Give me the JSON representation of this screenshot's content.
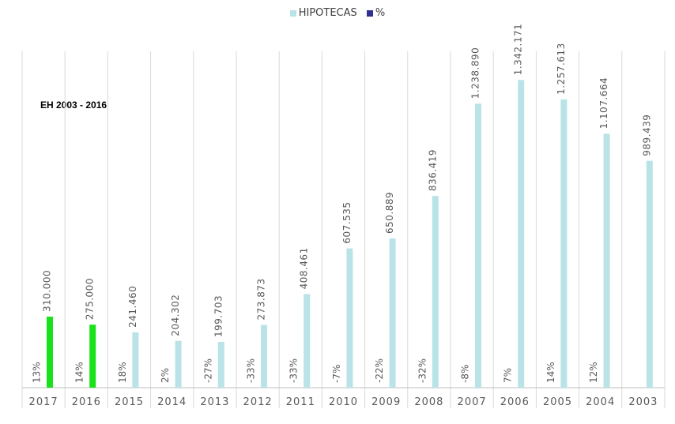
{
  "chart_data": {
    "type": "bar",
    "categories": [
      "2017",
      "2016",
      "2015",
      "2014",
      "2013",
      "2012",
      "2011",
      "2010",
      "2009",
      "2008",
      "2007",
      "2006",
      "2005",
      "2004",
      "2003"
    ],
    "series": [
      {
        "name": "HIPOTECAS",
        "values": [
          310000,
          275000,
          241460,
          204302,
          199703,
          273873,
          408461,
          607535,
          650889,
          836419,
          1238890,
          1342171,
          1257613,
          1107664,
          989439
        ],
        "labels": [
          "310.000",
          "275.000",
          "241.460",
          "204.302",
          "199.703",
          "273.873",
          "408.461",
          "607.535",
          "650.889",
          "836.419",
          "1.238.890",
          "1.342.171",
          "1.257.613",
          "1.107.664",
          "989.439"
        ]
      },
      {
        "name": "%",
        "labels": [
          "13%",
          "14%",
          "18%",
          "2%",
          "-27%",
          "-33%",
          "-33%",
          "-7%",
          "-22%",
          "-32%",
          "-8%",
          "7%",
          "14%",
          "12%",
          ""
        ]
      }
    ],
    "highlighted_categories": [
      "2017",
      "2016"
    ],
    "annotation": "EH 2003 - 2016",
    "ylim": [
      0,
      1450000
    ],
    "grid": "vertical",
    "legend_position": "top-center",
    "colors": {
      "hipotecas": "#b9e3e6",
      "highlight": "#1be11b",
      "percent": "#2e3192",
      "text": "#595959",
      "grid": "#d9d9d9",
      "axis": "#bfbfbf"
    }
  }
}
